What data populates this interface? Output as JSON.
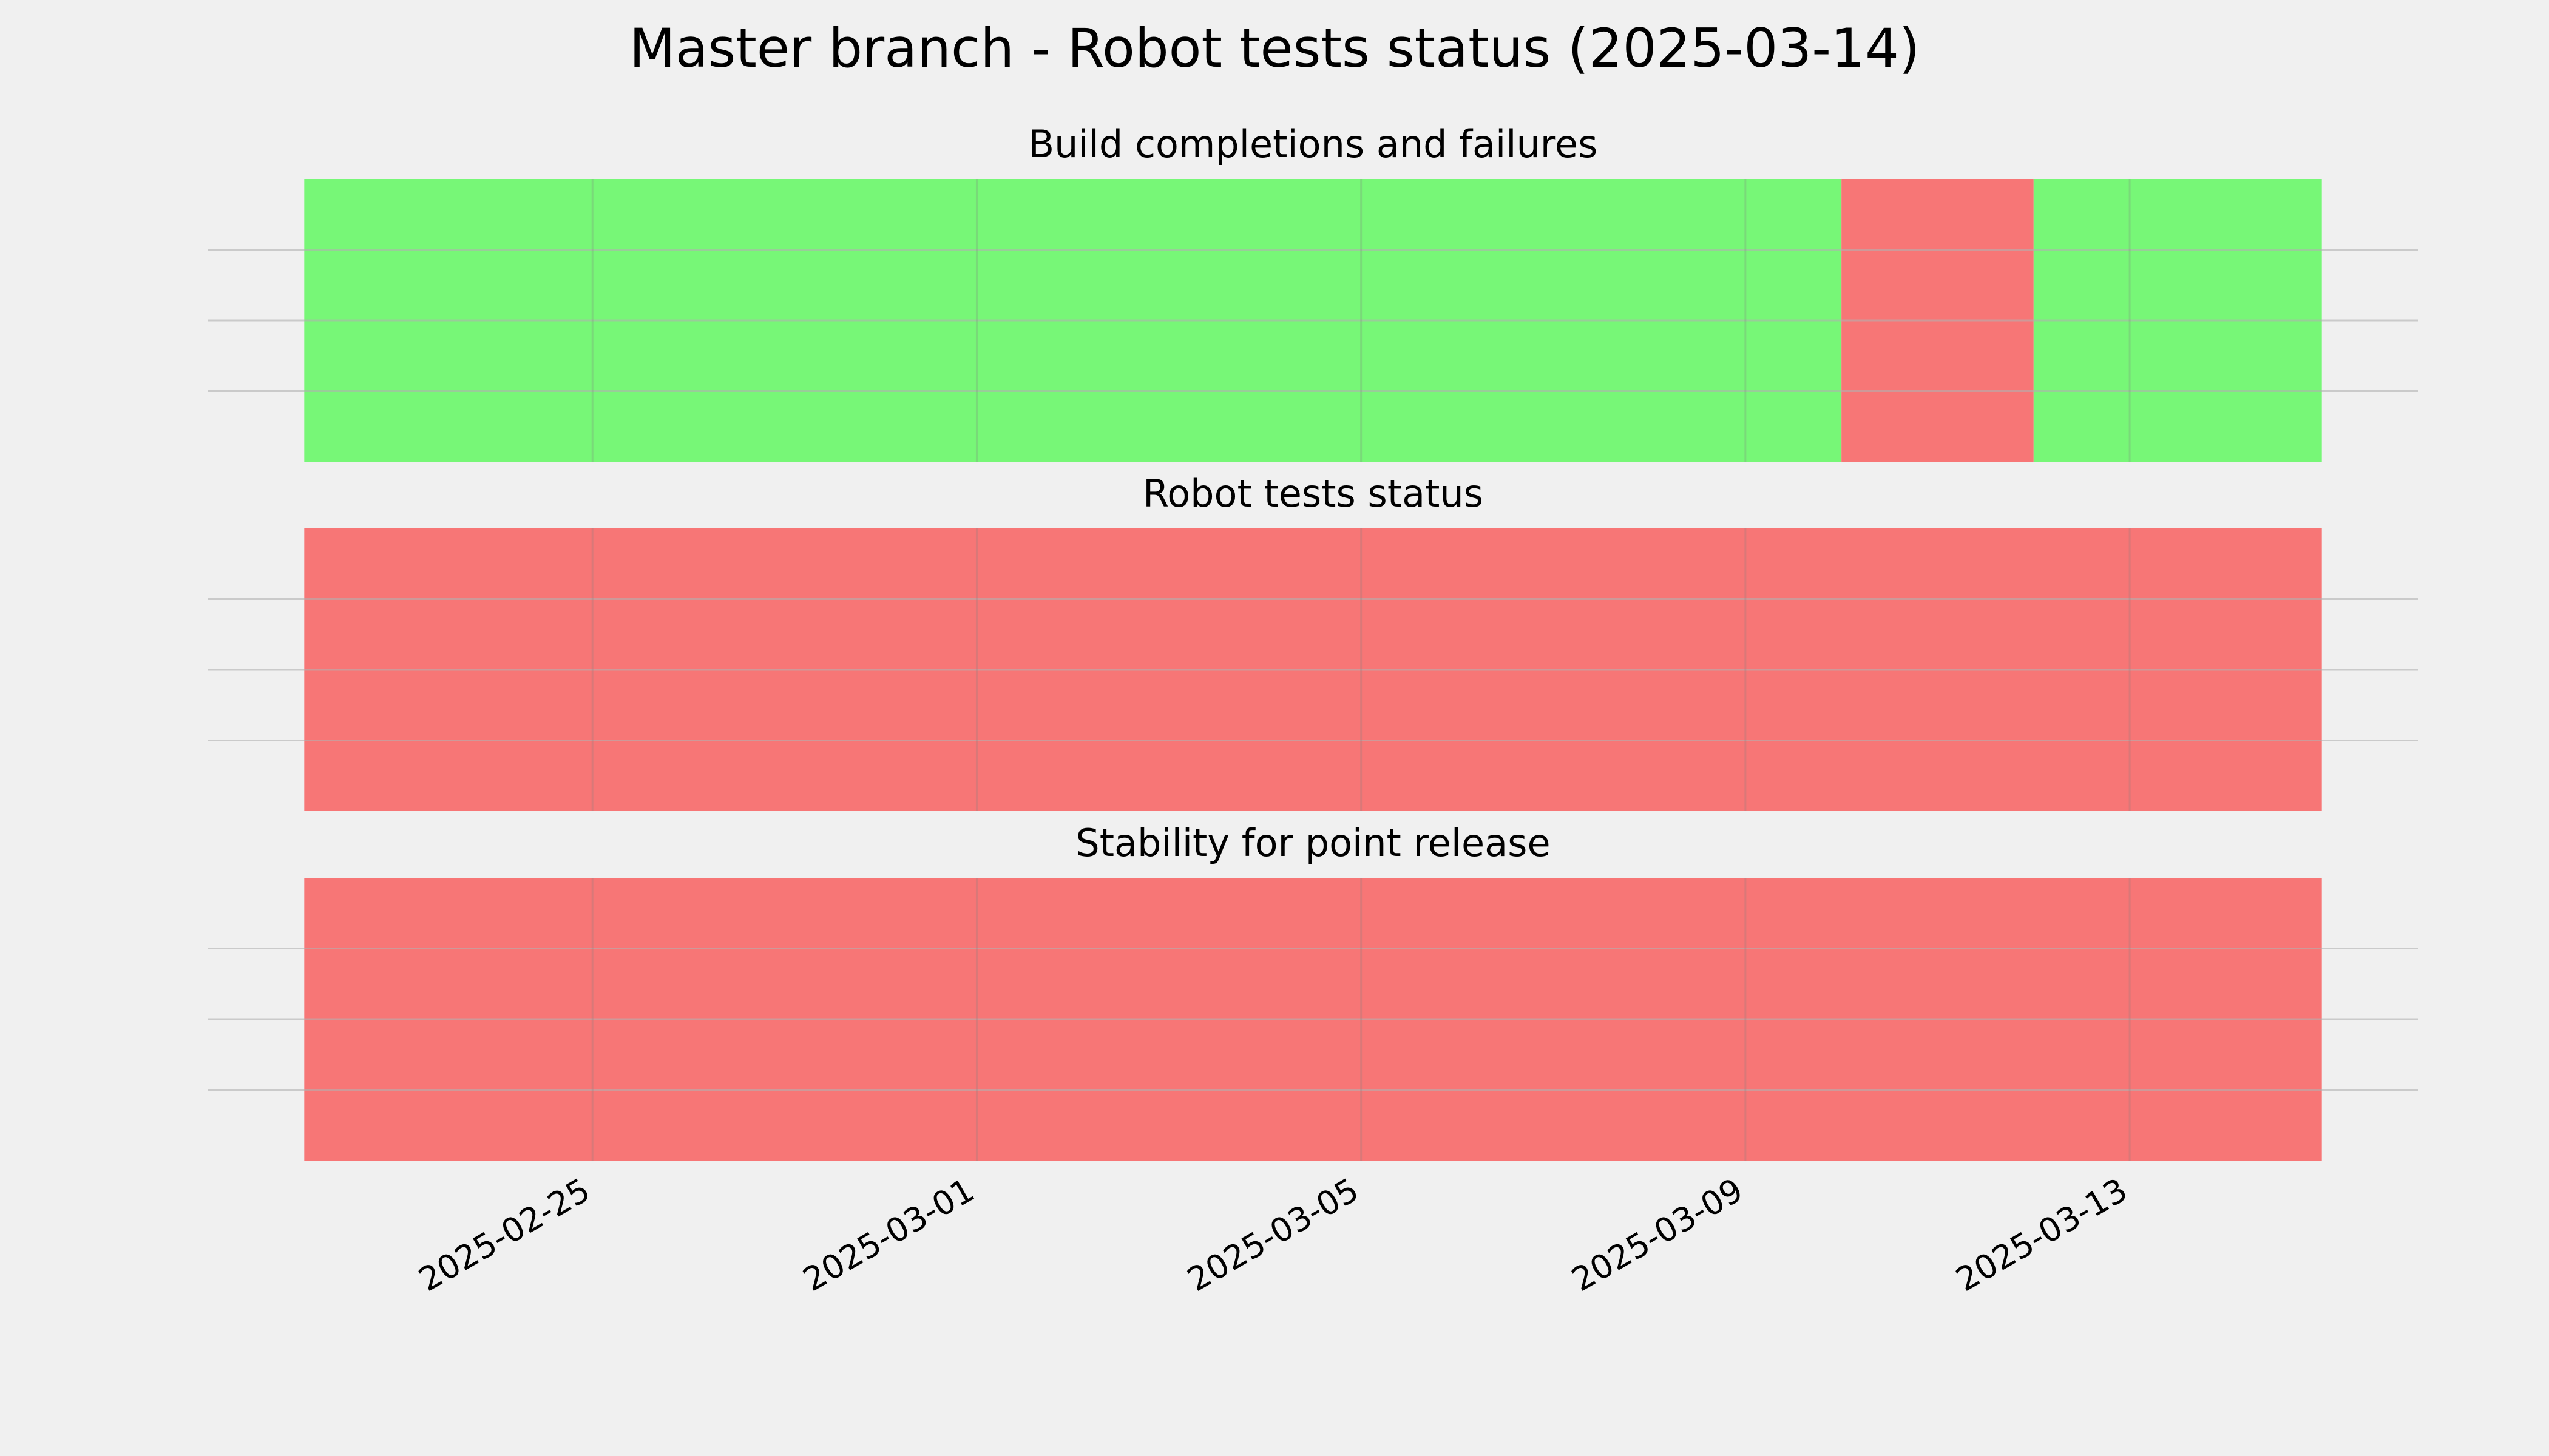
{
  "chart_data": {
    "type": "timeline",
    "title": "Master branch - Robot tests status (2025-03-14)",
    "xlim": [
      "2025-02-21",
      "2025-03-16"
    ],
    "xticks": [
      "2025-02-25",
      "2025-03-01",
      "2025-03-05",
      "2025-03-09",
      "2025-03-13"
    ],
    "ylim": [
      0,
      1
    ],
    "yticks": [
      0.25,
      0.5,
      0.75
    ],
    "grid": true,
    "panels": [
      {
        "title": "Build completions and failures",
        "segments": [
          {
            "start": "2025-02-22",
            "end": "2025-03-10",
            "color": "#77f777"
          },
          {
            "start": "2025-03-10",
            "end": "2025-03-12",
            "color": "#f77676"
          },
          {
            "start": "2025-03-12",
            "end": "2025-03-15",
            "color": "#77f777"
          }
        ]
      },
      {
        "title": "Robot tests status",
        "segments": [
          {
            "start": "2025-02-22",
            "end": "2025-03-15",
            "color": "#f77676"
          }
        ]
      },
      {
        "title": "Stability for point release",
        "segments": [
          {
            "start": "2025-02-22",
            "end": "2025-03-15",
            "color": "#f77676"
          }
        ]
      }
    ]
  }
}
